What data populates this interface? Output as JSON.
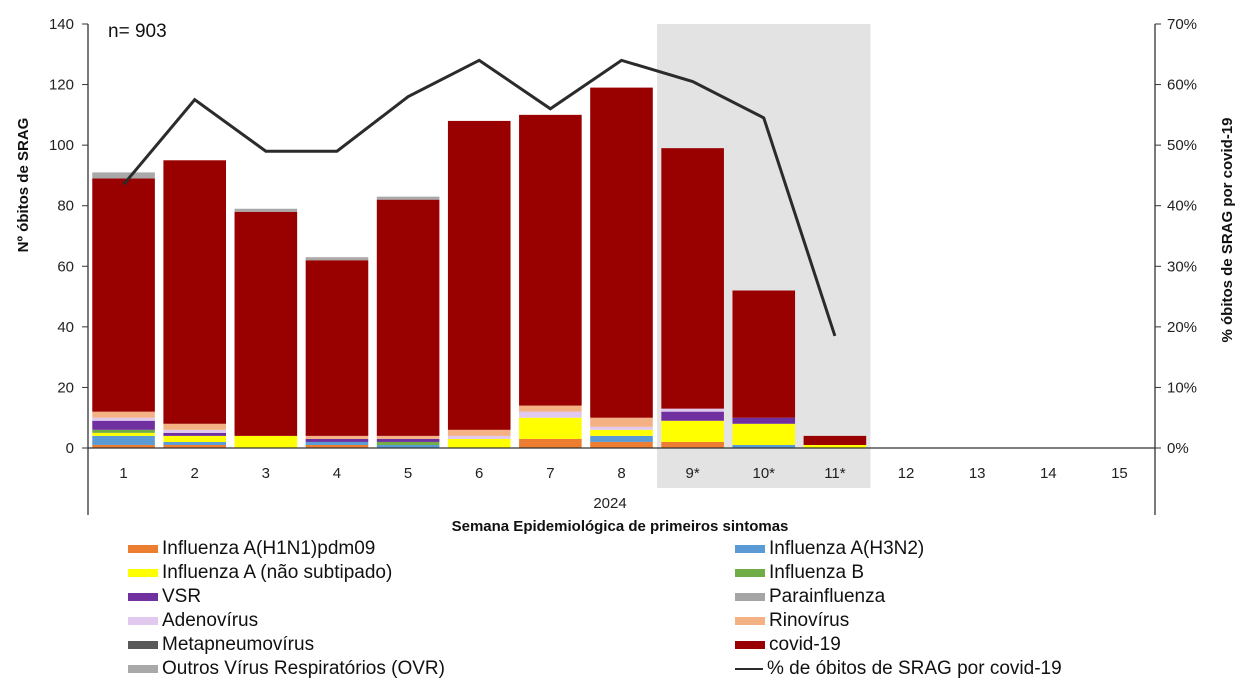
{
  "chart_data": {
    "type": "bar",
    "annotation": "n= 903",
    "year_label": "2024",
    "xlabel": "Semana Epidemiológica de primeiros sintomas",
    "ylabel": "Nº óbitos de SRAG",
    "y2label": "% óbitos de SRAG por covid-19",
    "ylim": [
      0,
      140
    ],
    "y2lim": [
      0,
      70
    ],
    "yticks": [
      "0",
      "20",
      "40",
      "60",
      "80",
      "100",
      "120",
      "140"
    ],
    "y2ticks": [
      "0%",
      "10%",
      "20%",
      "30%",
      "40%",
      "50%",
      "60%",
      "70%"
    ],
    "categories": [
      "1",
      "2",
      "3",
      "4",
      "5",
      "6",
      "7",
      "8",
      "9*",
      "10*",
      "11*",
      "12",
      "13",
      "14",
      "15"
    ],
    "shaded_categories": [
      "9*",
      "10*",
      "11*"
    ],
    "stacked": true,
    "series": [
      {
        "name": "Influenza A(H1N1)pdm09",
        "color": "#ed7d31",
        "values": [
          1,
          1,
          0,
          1,
          0,
          0,
          3,
          2,
          2,
          0,
          0,
          0,
          0,
          0,
          0
        ]
      },
      {
        "name": "Influenza A(H3N2)",
        "color": "#5b9bd5",
        "values": [
          3,
          1,
          0,
          1,
          1,
          0,
          0,
          2,
          0,
          1,
          0,
          0,
          0,
          0,
          0
        ]
      },
      {
        "name": "Influenza A (não subtipado)",
        "color": "#ffff00",
        "values": [
          1,
          2,
          4,
          0,
          0,
          3,
          7,
          2,
          7,
          7,
          1,
          0,
          0,
          0,
          0
        ]
      },
      {
        "name": "Influenza B",
        "color": "#70ad47",
        "values": [
          1,
          0,
          0,
          0,
          1,
          0,
          0,
          0,
          0,
          0,
          0,
          0,
          0,
          0,
          0
        ]
      },
      {
        "name": "VSR",
        "color": "#7030a0",
        "values": [
          3,
          1,
          0,
          1,
          1,
          0,
          0,
          0,
          3,
          2,
          0,
          0,
          0,
          0,
          0
        ]
      },
      {
        "name": "Parainfluenza",
        "color": "#a5a5a5",
        "values": [
          0,
          0,
          0,
          0,
          0,
          0,
          0,
          0,
          0,
          0,
          0,
          0,
          0,
          0,
          0
        ]
      },
      {
        "name": "Adenovírus",
        "color": "#e0c8ee",
        "values": [
          1,
          1,
          0,
          0,
          0,
          1,
          2,
          1,
          1,
          0,
          0,
          0,
          0,
          0,
          0
        ]
      },
      {
        "name": "Rinovírus",
        "color": "#f4b183",
        "values": [
          2,
          2,
          0,
          1,
          1,
          2,
          2,
          3,
          0,
          0,
          0,
          0,
          0,
          0,
          0
        ]
      },
      {
        "name": "Metapneumovírus",
        "color": "#595959",
        "values": [
          0,
          0,
          0,
          0,
          0,
          0,
          0,
          0,
          0,
          0,
          0,
          0,
          0,
          0,
          0
        ]
      },
      {
        "name": "covid-19",
        "color": "#990000",
        "values": [
          77,
          87,
          74,
          58,
          78,
          102,
          96,
          109,
          86,
          42,
          3,
          0,
          0,
          0,
          0
        ]
      },
      {
        "name": "Outros Vírus Respiratórios (OVR)",
        "color": "#a9a9a9",
        "values": [
          2,
          0,
          1,
          1,
          1,
          0,
          0,
          0,
          0,
          0,
          0,
          0,
          0,
          0,
          0
        ]
      }
    ],
    "line_series": {
      "name": "% de óbitos de SRAG por covid-19",
      "color": "#2b2b2b",
      "axis": "right",
      "values": [
        43.5,
        57.5,
        49,
        49,
        58,
        64,
        56,
        64,
        60.5,
        54.5,
        18.5,
        null,
        null,
        null,
        null
      ]
    },
    "legend_position": "bottom"
  }
}
